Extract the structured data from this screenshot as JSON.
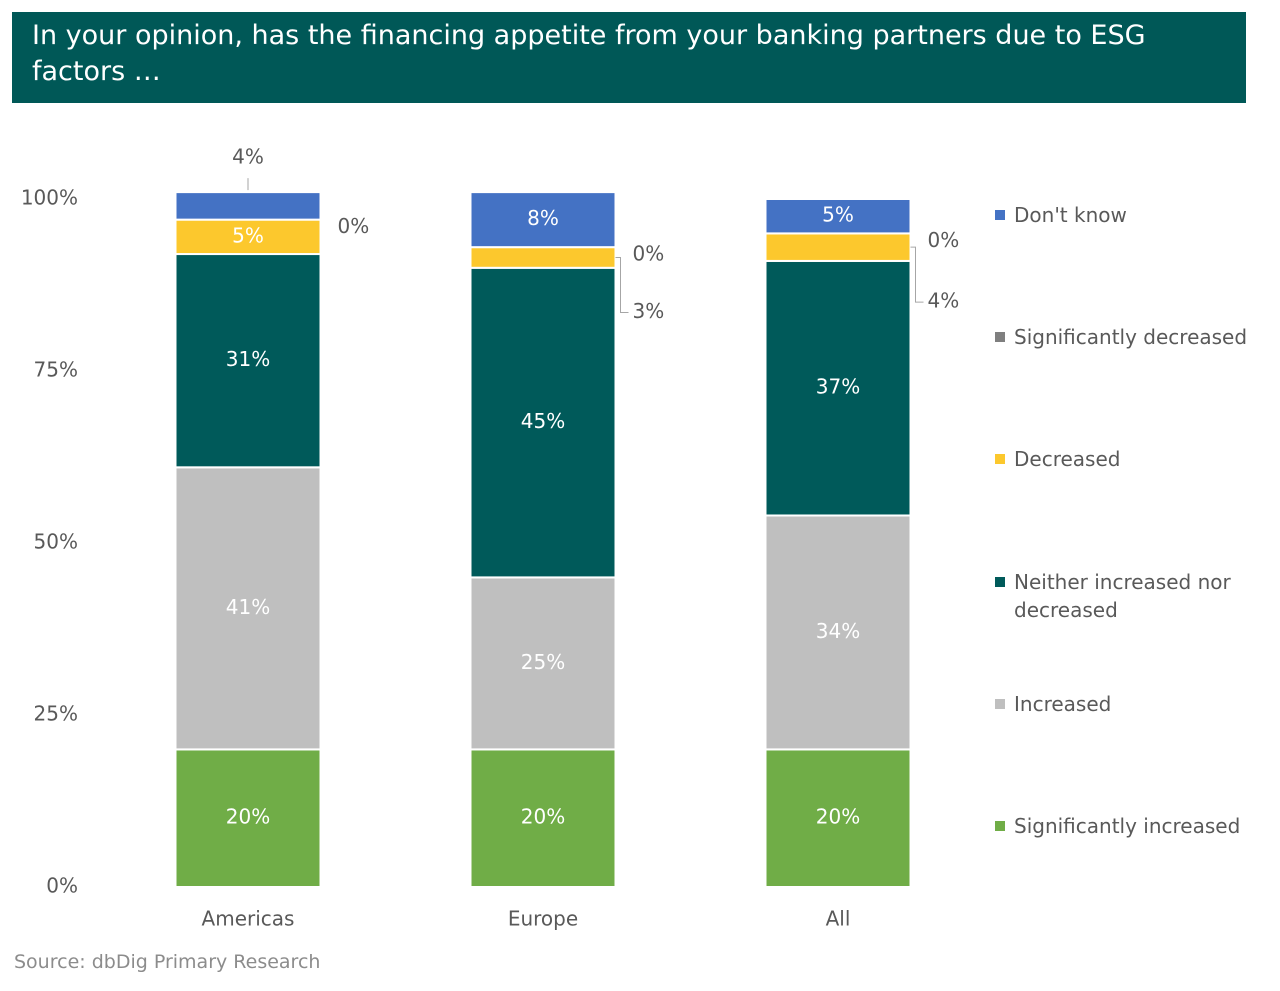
{
  "chart_data": {
    "type": "stacked_bar",
    "title": "In your opinion, has the financing appetite from your banking partners due to ESG factors …",
    "source": "Source: dbDig Primary Research",
    "categories": [
      "Americas",
      "Europe",
      "All"
    ],
    "series": [
      {
        "name": "Significantly increased",
        "color": "#70ad47",
        "values": [
          20,
          20,
          20
        ],
        "value_labels": [
          "20%",
          "20%",
          "20%"
        ]
      },
      {
        "name": "Increased",
        "color": "#bfbfbf",
        "values": [
          41,
          25,
          34
        ],
        "value_labels": [
          "41%",
          "25%",
          "34%"
        ]
      },
      {
        "name": "Neither increased nor decreased",
        "color": "#005a5a",
        "values": [
          31,
          45,
          37
        ],
        "value_labels": [
          "31%",
          "45%",
          "37%"
        ]
      },
      {
        "name": "Decreased",
        "color": "#fcc82d",
        "values": [
          5,
          3,
          4
        ],
        "value_labels": [
          "5%",
          "3%",
          "4%"
        ]
      },
      {
        "name": "Significantly decreased",
        "color": "#7f7f7f",
        "values": [
          0,
          0,
          0
        ],
        "value_labels": [
          "0%",
          "0%",
          "0%"
        ]
      },
      {
        "name": "Don't know",
        "color": "#4472c4",
        "values": [
          4,
          8,
          5
        ],
        "value_labels": [
          "4%",
          "8%",
          "5%"
        ]
      }
    ],
    "ylim": [
      0,
      100
    ],
    "yticks": [
      {
        "value": 0,
        "label": "0%"
      },
      {
        "value": 25,
        "label": "25%"
      },
      {
        "value": 50,
        "label": "50%"
      },
      {
        "value": 75,
        "label": "75%"
      },
      {
        "value": 100,
        "label": "100%"
      }
    ],
    "legend": "right"
  }
}
